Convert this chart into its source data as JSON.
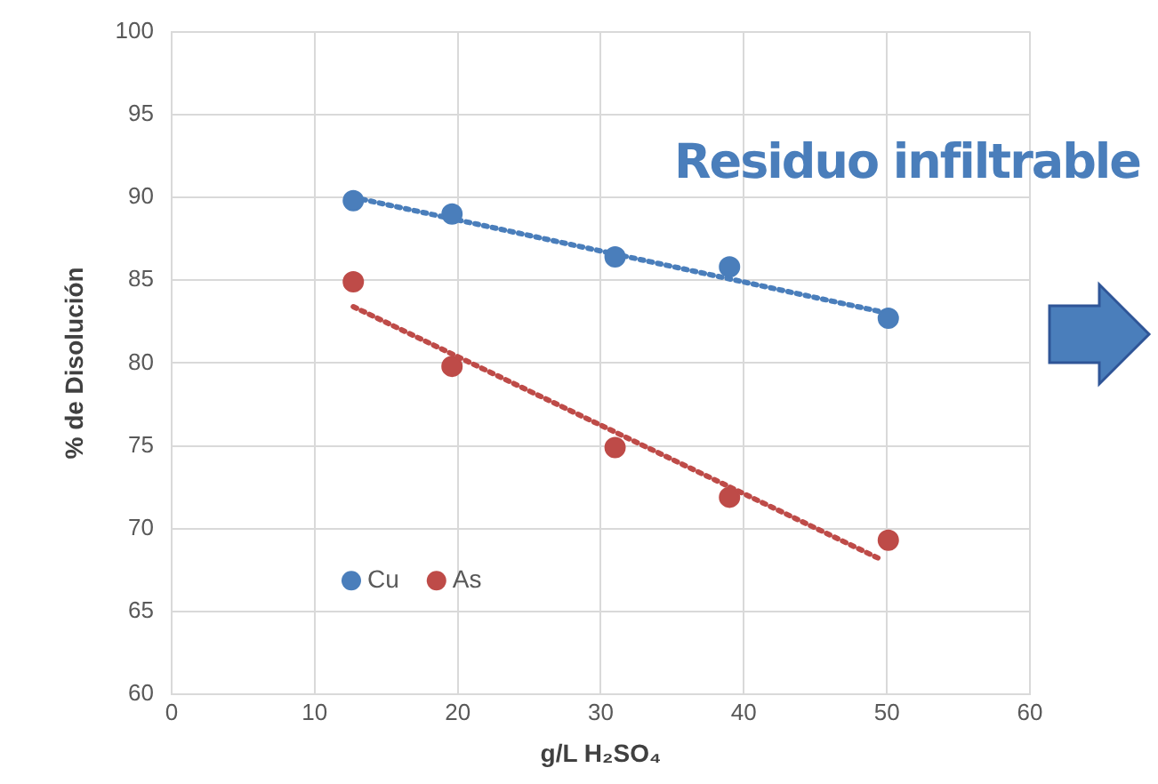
{
  "chart_data": {
    "type": "scatter",
    "xlabel": "g/L H₂SO₄",
    "ylabel": "% de Disolución",
    "xlim": [
      0,
      60
    ],
    "xticks": [
      0,
      10,
      20,
      30,
      40,
      50,
      60
    ],
    "ylim": [
      60,
      100
    ],
    "yticks": [
      60,
      65,
      70,
      75,
      80,
      85,
      90,
      95,
      100
    ],
    "grid": true,
    "legend": "bottom left",
    "marker": "circle",
    "annotations": [
      "Residuo infiltrable"
    ],
    "series": [
      {
        "name": "Cu",
        "color": "#4a7ebb",
        "x": [
          12.7,
          19.6,
          31,
          39,
          50.1
        ],
        "values": [
          89.8,
          89,
          86.4,
          85.8,
          82.7
        ]
      },
      {
        "name": "As",
        "color": "#be4b48",
        "x": [
          12.7,
          19.6,
          31,
          39,
          50.1
        ],
        "values": [
          84.9,
          79.8,
          74.9,
          71.9,
          69.3
        ]
      },
      {
        "type": "line",
        "color": "#4a7ebb",
        "line_style": "dotted",
        "marker": "none",
        "x": [
          12.7,
          50.1
        ],
        "values": [
          90,
          83
        ]
      },
      {
        "type": "line",
        "color": "#be4b48",
        "line_style": "dotted",
        "marker": "none",
        "x": [
          12.7,
          49.7
        ],
        "values": [
          83.4,
          68.1
        ]
      }
    ]
  }
}
